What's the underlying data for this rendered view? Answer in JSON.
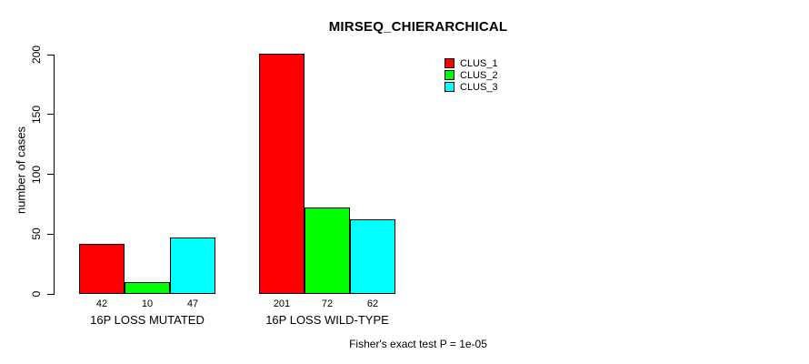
{
  "title": "MIRSEQ_CHIERARCHICAL",
  "caption": "Fisher's exact test P = 1e-05",
  "chart_data": {
    "type": "bar",
    "title": "MIRSEQ_CHIERARCHICAL",
    "xlabel": "",
    "ylabel": "number of cases",
    "categories": [
      "16P LOSS MUTATED",
      "16P LOSS WILD-TYPE"
    ],
    "series": [
      {
        "name": "CLUS_1",
        "color": "#ff0000",
        "values": [
          42,
          201
        ]
      },
      {
        "name": "CLUS_2",
        "color": "#00ff00",
        "values": [
          10,
          72
        ]
      },
      {
        "name": "CLUS_3",
        "color": "#00ffff",
        "values": [
          47,
          62
        ]
      }
    ],
    "ylim": [
      0,
      200
    ],
    "yticks": [
      0,
      50,
      100,
      150,
      200
    ],
    "grid": false,
    "bar_value_labels": true,
    "legend_position": "top-right",
    "annotation": "Fisher's exact test P = 1e-05"
  }
}
